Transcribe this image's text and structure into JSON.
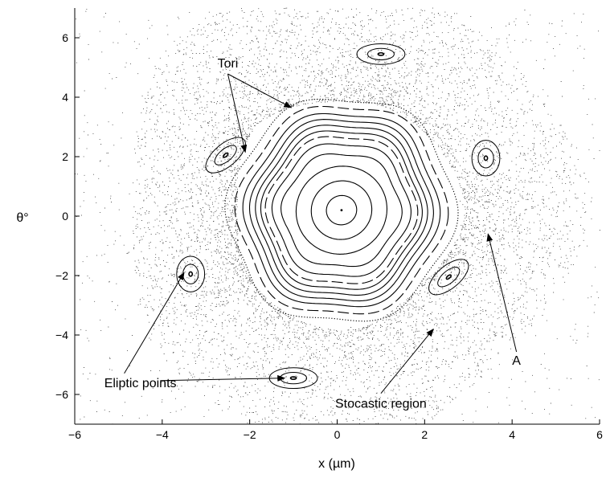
{
  "chart_data": {
    "type": "scatter",
    "title": "",
    "xlabel": "x (µm)",
    "ylabel": "θ°",
    "xlim": [
      -6,
      6
    ],
    "ylim": [
      -7,
      7
    ],
    "xticks": [
      -6,
      -4,
      -2,
      0,
      2,
      4,
      6
    ],
    "yticks": [
      -6,
      -4,
      -2,
      0,
      2,
      4,
      6
    ],
    "grid": false,
    "legend": "none",
    "description_free_plot": true,
    "central_elliptic_point": {
      "x": 0.1,
      "y": 0.2
    },
    "tori": [
      {
        "rx": 0.35,
        "ry": 0.5,
        "style": "solid"
      },
      {
        "rx": 0.7,
        "ry": 1.0,
        "style": "solid"
      },
      {
        "rx": 1.05,
        "ry": 1.5,
        "style": "solid"
      },
      {
        "rx": 1.35,
        "ry": 1.95,
        "style": "solid"
      },
      {
        "rx": 1.55,
        "ry": 2.3,
        "style": "solid"
      },
      {
        "rx": 1.7,
        "ry": 2.55,
        "style": "dashed"
      },
      {
        "rx": 1.8,
        "ry": 2.75,
        "style": "solid"
      },
      {
        "rx": 1.92,
        "ry": 2.95,
        "style": "solid"
      },
      {
        "rx": 2.05,
        "ry": 3.15,
        "style": "solid"
      },
      {
        "rx": 2.2,
        "ry": 3.35,
        "style": "solid"
      },
      {
        "rx": 2.38,
        "ry": 3.6,
        "style": "dashed"
      },
      {
        "rx": 2.6,
        "ry": 3.85,
        "style": "dotted"
      }
    ],
    "island_chain": [
      {
        "x": 1.0,
        "y": 5.45,
        "ax": 0.55,
        "ay": 0.35,
        "angle": 0
      },
      {
        "x": 3.4,
        "y": 1.95,
        "ax": 0.32,
        "ay": 0.6,
        "angle": 0
      },
      {
        "x": 2.55,
        "y": -2.05,
        "ax": 0.55,
        "ay": 0.38,
        "angle": -40
      },
      {
        "x": -1.0,
        "y": -5.45,
        "ax": 0.55,
        "ay": 0.35,
        "angle": 0
      },
      {
        "x": -3.35,
        "y": -1.95,
        "ax": 0.32,
        "ay": 0.6,
        "angle": 0
      },
      {
        "x": -2.55,
        "y": 2.05,
        "ax": 0.55,
        "ay": 0.38,
        "angle": -40
      }
    ],
    "annotations": [
      {
        "text": "Tori",
        "x": -2.5,
        "y": 5.0,
        "arrows_to": [
          [
            -1.05,
            3.65
          ],
          [
            -2.1,
            2.15
          ]
        ]
      },
      {
        "text": "A",
        "x": 4.1,
        "y": -5.0,
        "arrows_to": [
          [
            3.45,
            -0.6
          ]
        ]
      },
      {
        "text": "Eliptic points",
        "x": -4.5,
        "y": -5.75,
        "arrows_to": [
          [
            -3.5,
            -1.9
          ],
          [
            -1.2,
            -5.45
          ]
        ]
      },
      {
        "text": "Stocastic region",
        "x": 1.0,
        "y": -6.45,
        "arrows_to": [
          [
            2.2,
            -3.8
          ]
        ]
      }
    ]
  }
}
